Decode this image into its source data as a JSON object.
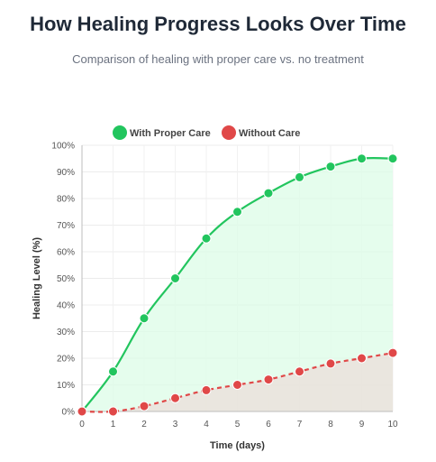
{
  "header": {
    "title": "How Healing Progress Looks Over Time",
    "subtitle": "Comparison of healing with proper care vs. no treatment"
  },
  "chart_data": {
    "type": "line",
    "x": [
      0,
      1,
      2,
      3,
      4,
      5,
      6,
      7,
      8,
      9,
      10
    ],
    "series": [
      {
        "name": "With Proper Care",
        "values": [
          0,
          15,
          35,
          50,
          65,
          75,
          82,
          88,
          92,
          95,
          95
        ],
        "color": "#22c55e",
        "fill": "#dcfce7",
        "line_style": "solid"
      },
      {
        "name": "Without Care",
        "values": [
          0,
          0,
          2,
          5,
          8,
          10,
          12,
          15,
          18,
          20,
          22
        ],
        "color": "#e04848",
        "fill": "#e8e3dc",
        "line_style": "dashed"
      }
    ],
    "xlabel": "Time (days)",
    "ylabel": "Healing Level (%)",
    "xlim": [
      0,
      10
    ],
    "ylim": [
      0,
      100
    ],
    "y_ticks": [
      "0%",
      "10%",
      "20%",
      "30%",
      "40%",
      "50%",
      "60%",
      "70%",
      "80%",
      "90%",
      "100%"
    ],
    "x_ticks": [
      "0",
      "1",
      "2",
      "3",
      "4",
      "5",
      "6",
      "7",
      "8",
      "9",
      "10"
    ],
    "grid": true,
    "legend_position": "top-center"
  }
}
